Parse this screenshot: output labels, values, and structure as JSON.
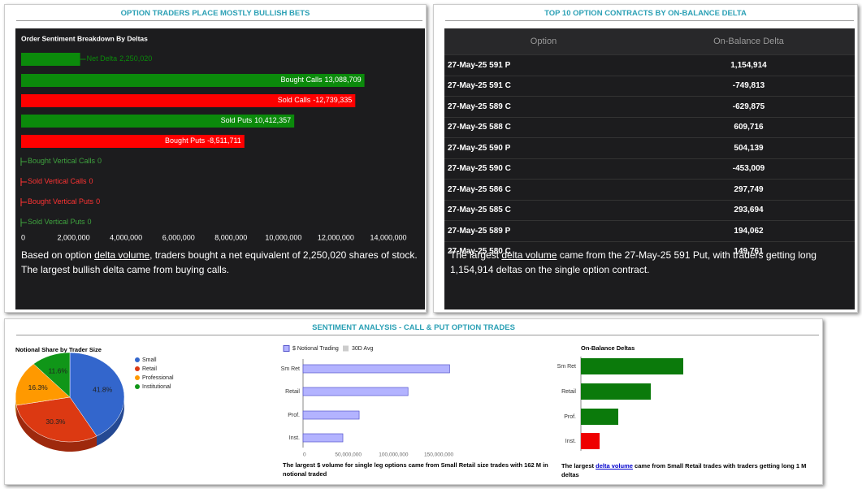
{
  "headers": [
    "OPTION TRADERS PLACE MOSTLY BULLISH BETS",
    "TOP 10 OPTION CONTRACTS BY ON-BALANCE DELTA",
    "SENTIMENT ANALYSIS - CALL & PUT OPTION TRADES"
  ],
  "chart_data": [
    {
      "type": "hbar",
      "title": "Order Sentiment Breakdown By Deltas",
      "categories": [
        "Net Delta",
        "Bought Calls",
        "Sold Calls",
        "Sold Puts",
        "Bought Puts",
        "Bought Vertical Calls",
        "Sold Vertical Calls",
        "Bought Vertical Puts",
        "Sold Vertical Puts"
      ],
      "values": [
        2250020,
        13088709,
        -12739335,
        10412357,
        -8511711,
        0,
        0,
        0,
        0
      ],
      "value_labels": [
        "2,250,020",
        "13,088,709",
        "-12,739,335",
        "10,412,357",
        "-8,511,711",
        "0",
        "0",
        "0",
        "0"
      ],
      "colors": [
        "#0b8a0b",
        "#0b8a0b",
        "#ff0000",
        "#0b8a0b",
        "#ff0000",
        "#3fa33f",
        "#ff3333",
        "#ff3333",
        "#3fa33f"
      ],
      "xlim": [
        0,
        14000000
      ],
      "xticks": [
        0,
        {
          "value": 2000000,
          "label": "2,000,000"
        },
        {
          "value": 4000000,
          "label": "4,000,000"
        },
        {
          "value": 6000000,
          "label": "6,000,000"
        },
        {
          "value": 8000000,
          "label": "8,000,000"
        },
        {
          "value": 10000000,
          "label": "10,000,000"
        },
        {
          "value": 12000000,
          "label": "12,000,000"
        },
        {
          "value": 14000000,
          "label": "14,000,000"
        }
      ]
    },
    {
      "type": "pie",
      "title": "Notional Share by Trader Size",
      "categories": [
        "Small",
        "Retail",
        "Professional",
        "Institutional"
      ],
      "values": [
        41.8,
        30.3,
        16.3,
        11.6
      ],
      "value_labels": [
        "41.8%",
        "30.3%",
        "16.3%",
        "11.6%"
      ],
      "colors": [
        "#3366cc",
        "#dc3912",
        "#ff9900",
        "#109618"
      ]
    },
    {
      "type": "hbar",
      "categories": [
        "Sm Ret",
        "Retail",
        "Prof.",
        "Inst."
      ],
      "series": [
        {
          "name": "$ Notional Trading",
          "color": "#b3b3ff",
          "values": [
            162000000,
            116000000,
            62000000,
            44000000
          ]
        },
        {
          "name": "30D Avg",
          "color": "#cccccc",
          "values": [
            null,
            null,
            null,
            null
          ]
        }
      ],
      "xlim": [
        0,
        180000000
      ],
      "xticks": [
        0,
        {
          "value": 50000000,
          "label": "50,000,000"
        },
        {
          "value": 100000000,
          "label": "100,000,000"
        },
        {
          "value": 150000000,
          "label": "150,000,000"
        }
      ]
    },
    {
      "type": "hbar",
      "title": "On-Balance Deltas",
      "categories": [
        "Sm Ret",
        "Retail",
        "Prof.",
        "Inst."
      ],
      "values": [
        1000000,
        683000,
        365000,
        -183000
      ],
      "colors": [
        "#0b7a0b",
        "#0b7a0b",
        "#0b7a0b",
        "#ee0000"
      ]
    }
  ],
  "table": {
    "columns": [
      "Option",
      "On-Balance Delta"
    ],
    "rows": [
      [
        "27-May-25 591 P",
        "1,154,914"
      ],
      [
        "27-May-25 591 C",
        "-749,813"
      ],
      [
        "27-May-25 589 C",
        "-629,875"
      ],
      [
        "27-May-25 588 C",
        "609,716"
      ],
      [
        "27-May-25 590 P",
        "504,139"
      ],
      [
        "27-May-25 590 C",
        "-453,009"
      ],
      [
        "27-May-25 586 C",
        "297,749"
      ],
      [
        "27-May-25 585 C",
        "293,694"
      ],
      [
        "27-May-25 589 P",
        "194,062"
      ],
      [
        "27-May-25 580 C",
        "149,761"
      ]
    ]
  },
  "notes": [
    [
      "Based on option ",
      "delta volume",
      ", traders bought a net equivalent of 2,250,020 shares of stock. The largest bullish delta came from buying calls."
    ],
    [
      "The largest ",
      "delta volume",
      " came from the 27-May-25 591 Put, with traders getting long 1,154,914 deltas on the single option contract."
    ],
    [
      "The largest $ volume for single leg options came from Small Retail size trades with 162 M in notional traded"
    ],
    [
      "The largest ",
      "delta volume",
      " came from Small Retail trades with traders getting long 1 M deltas"
    ]
  ]
}
